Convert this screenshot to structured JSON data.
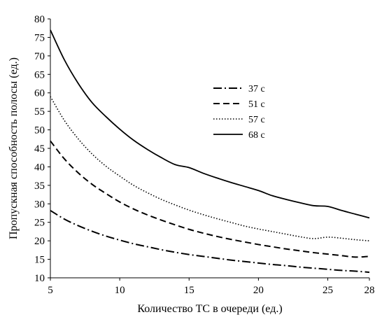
{
  "chart_data": {
    "type": "line",
    "title": "",
    "xlabel": "Количество ТС в очереди (ед.)",
    "ylabel": "Пропускная способность полосы (ед.)",
    "xlim": [
      5,
      28
    ],
    "ylim": [
      10,
      80
    ],
    "xticks": [
      5,
      10,
      15,
      20,
      25,
      28
    ],
    "yticks": [
      10,
      15,
      20,
      25,
      30,
      35,
      40,
      45,
      50,
      55,
      60,
      65,
      70,
      75,
      80
    ],
    "grid": false,
    "legend_position": "right",
    "series": [
      {
        "name": "37 с",
        "style": "dashdot",
        "color": "#000000",
        "x": [
          5,
          6,
          7,
          8,
          9,
          10,
          11,
          12,
          13,
          14,
          15,
          16,
          17,
          18,
          19,
          20,
          21,
          22,
          23,
          24,
          25,
          26,
          27,
          28
        ],
        "y": [
          28.2,
          25.9,
          24.1,
          22.6,
          21.3,
          20.2,
          19.2,
          18.4,
          17.6,
          16.9,
          16.3,
          15.8,
          15.3,
          14.8,
          14.4,
          14.0,
          13.6,
          13.3,
          12.9,
          12.6,
          12.3,
          12.0,
          11.8,
          11.5
        ]
      },
      {
        "name": "51 с",
        "style": "dashed",
        "color": "#000000",
        "x": [
          5,
          6,
          7,
          8,
          9,
          10,
          11,
          12,
          13,
          14,
          15,
          16,
          17,
          18,
          19,
          20,
          21,
          22,
          23,
          24,
          25,
          26,
          27,
          28
        ],
        "y": [
          47.0,
          42.2,
          38.4,
          35.3,
          32.8,
          30.5,
          28.6,
          27.0,
          25.6,
          24.3,
          23.1,
          22.1,
          21.2,
          20.4,
          19.7,
          19.0,
          18.4,
          17.8,
          17.3,
          16.8,
          16.4,
          16.0,
          15.6,
          15.8
        ]
      },
      {
        "name": "57 с",
        "style": "dotted",
        "color": "#000000",
        "x": [
          5,
          6,
          7,
          8,
          9,
          10,
          11,
          12,
          13,
          14,
          15,
          16,
          17,
          18,
          19,
          20,
          21,
          22,
          23,
          24,
          25,
          26,
          27,
          28
        ],
        "y": [
          59.0,
          52.6,
          47.6,
          43.5,
          40.2,
          37.5,
          35.0,
          33.0,
          31.2,
          29.7,
          28.3,
          27.1,
          26.0,
          25.0,
          24.0,
          23.2,
          22.5,
          21.8,
          21.1,
          20.6,
          21.0,
          20.7,
          20.3,
          20.0
        ]
      },
      {
        "name": "68 с",
        "style": "solid",
        "color": "#000000",
        "x": [
          5,
          6,
          7,
          8,
          9,
          10,
          11,
          12,
          13,
          14,
          15,
          16,
          17,
          18,
          19,
          20,
          21,
          22,
          23,
          24,
          25,
          26,
          27,
          28
        ],
        "y": [
          77.0,
          69.0,
          62.6,
          57.4,
          53.6,
          50.2,
          47.2,
          44.7,
          42.5,
          40.6,
          39.8,
          38.3,
          37.0,
          35.8,
          34.7,
          33.6,
          32.2,
          31.2,
          30.3,
          29.5,
          29.3,
          28.2,
          27.2,
          26.2
        ]
      }
    ]
  }
}
